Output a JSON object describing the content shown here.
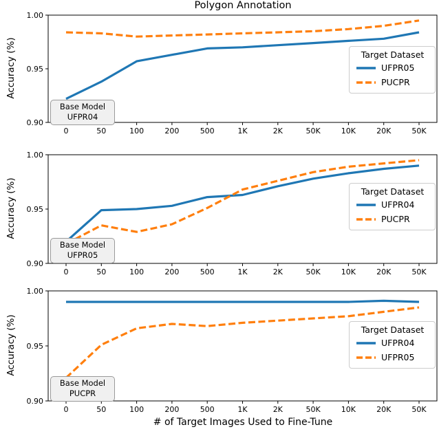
{
  "figure": {
    "title": "Polygon Annotation",
    "xlabel": "# of Target Images Used to Fine-Tune",
    "ylabel": "Accuracy (%)"
  },
  "colors": {
    "blue": "#1f77b4",
    "orange": "#ff7f0e"
  },
  "chart_data": [
    {
      "type": "line",
      "base_model": "UFPR04",
      "annotation": {
        "line1": "Base Model",
        "line2": "UFPR04"
      },
      "legend": {
        "title": "Target Dataset",
        "position": "center right"
      },
      "grid": false,
      "categories": [
        "0",
        "50",
        "100",
        "200",
        "500",
        "1K",
        "2K",
        "50K",
        "10K",
        "20K",
        "50K"
      ],
      "ylim": [
        0.9,
        1.0
      ],
      "y_ticks": [
        {
          "value": 0.9,
          "label": "0.90"
        },
        {
          "value": 0.95,
          "label": "0.95"
        },
        {
          "value": 1.0,
          "label": "1.00"
        }
      ],
      "series": [
        {
          "name": "UFPR05",
          "color": "#1f77b4",
          "dash": "solid",
          "values": [
            0.922,
            0.938,
            0.957,
            0.963,
            0.969,
            0.97,
            0.972,
            0.974,
            0.976,
            0.978,
            0.984
          ]
        },
        {
          "name": "PUCPR",
          "color": "#ff7f0e",
          "dash": "dashed",
          "values": [
            0.984,
            0.983,
            0.98,
            0.981,
            0.982,
            0.983,
            0.984,
            0.985,
            0.987,
            0.99,
            0.995
          ]
        }
      ]
    },
    {
      "type": "line",
      "base_model": "UFPR05",
      "annotation": {
        "line1": "Base Model",
        "line2": "UFPR05"
      },
      "legend": {
        "title": "Target Dataset",
        "position": "center right"
      },
      "grid": false,
      "categories": [
        "0",
        "50",
        "100",
        "200",
        "500",
        "1K",
        "2K",
        "50K",
        "10K",
        "20K",
        "50K"
      ],
      "ylim": [
        0.9,
        1.0
      ],
      "y_ticks": [
        {
          "value": 0.9,
          "label": "0.90"
        },
        {
          "value": 0.95,
          "label": "0.95"
        },
        {
          "value": 1.0,
          "label": "1.00"
        }
      ],
      "series": [
        {
          "name": "UFPR04",
          "color": "#1f77b4",
          "dash": "solid",
          "values": [
            0.92,
            0.949,
            0.95,
            0.953,
            0.961,
            0.963,
            0.971,
            0.978,
            0.983,
            0.987,
            0.99
          ]
        },
        {
          "name": "PUCPR",
          "color": "#ff7f0e",
          "dash": "dashed",
          "values": [
            0.918,
            0.935,
            0.929,
            0.936,
            0.951,
            0.968,
            0.976,
            0.984,
            0.989,
            0.992,
            0.995
          ]
        }
      ]
    },
    {
      "type": "line",
      "base_model": "PUCPR",
      "annotation": {
        "line1": "Base Model",
        "line2": "PUCPR"
      },
      "legend": {
        "title": "Target Dataset",
        "position": "center right"
      },
      "grid": false,
      "categories": [
        "0",
        "50",
        "100",
        "200",
        "500",
        "1K",
        "2K",
        "50K",
        "10K",
        "20K",
        "50K"
      ],
      "ylim": [
        0.9,
        1.0
      ],
      "y_ticks": [
        {
          "value": 0.9,
          "label": "0.90"
        },
        {
          "value": 0.95,
          "label": "0.95"
        },
        {
          "value": 1.0,
          "label": "1.00"
        }
      ],
      "series": [
        {
          "name": "UFPR04",
          "color": "#1f77b4",
          "dash": "solid",
          "values": [
            0.99,
            0.99,
            0.99,
            0.99,
            0.99,
            0.99,
            0.99,
            0.99,
            0.99,
            0.991,
            0.99
          ]
        },
        {
          "name": "UFPR05",
          "color": "#ff7f0e",
          "dash": "dashed",
          "values": [
            0.921,
            0.951,
            0.966,
            0.97,
            0.968,
            0.971,
            0.973,
            0.975,
            0.977,
            0.981,
            0.985
          ]
        }
      ]
    }
  ]
}
